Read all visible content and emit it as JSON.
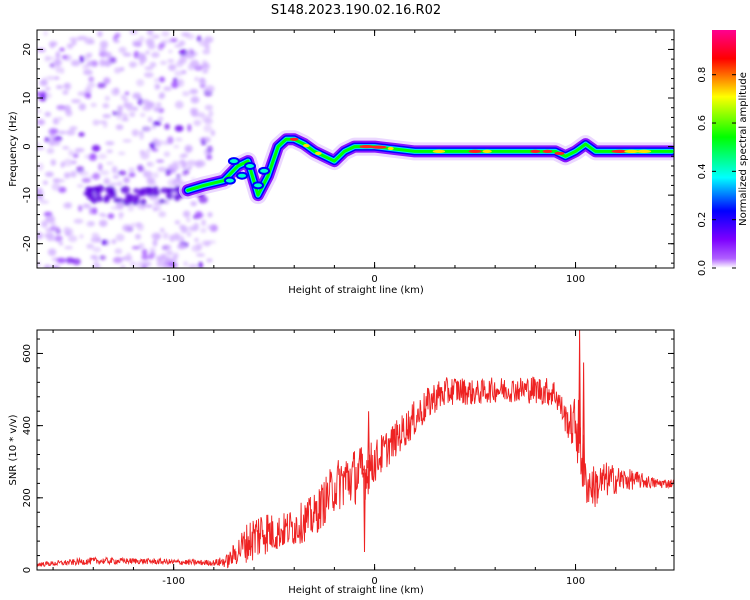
{
  "title": "S148.2023.190.02.16.R02",
  "colorbar": {
    "label": "Normalized spectral amplitude",
    "ticks": [
      0.0,
      0.2,
      0.4,
      0.6,
      0.8
    ],
    "colors": [
      "#ffffff",
      "#7d00ff",
      "#0000ff",
      "#00ffff",
      "#00ff00",
      "#ffff00",
      "#ff0000",
      "#ff0090"
    ]
  },
  "chart_data": [
    {
      "type": "heatmap",
      "xlabel": "Height of straight line (km)",
      "ylabel": "Frequency (Hz)",
      "xlim": [
        -168,
        149
      ],
      "ylim": [
        -25,
        24
      ],
      "xticks": [
        -100,
        0,
        100
      ],
      "yticks": [
        -20,
        -10,
        0,
        10,
        20
      ],
      "ridge": {
        "x": [
          -93,
          -85,
          -75,
          -68,
          -63,
          -58,
          -53,
          -48,
          -44,
          -40,
          -35,
          -30,
          -25,
          -20,
          -15,
          -10,
          0,
          10,
          20,
          40,
          60,
          80,
          90,
          95,
          100,
          105,
          110,
          120,
          130,
          140,
          148
        ],
        "freq": [
          -9,
          -8,
          -7,
          -4,
          -3,
          -10,
          -6,
          0,
          1.5,
          1.5,
          0.5,
          -1,
          -2,
          -3,
          -1,
          0,
          0,
          -0.5,
          -1,
          -1,
          -1,
          -1,
          -1,
          -2,
          -1,
          0.5,
          -1,
          -1,
          -1,
          -1,
          -1
        ]
      }
    },
    {
      "type": "line",
      "xlabel": "Height of straight line (km)",
      "ylabel": "SNR (10 * v/v)",
      "xlim": [
        -168,
        149
      ],
      "ylim": [
        0,
        665
      ],
      "xticks": [
        -100,
        0,
        100
      ],
      "yticks": [
        0,
        200,
        400,
        600
      ],
      "color": "#ee2222",
      "envelope": {
        "x": [
          -168,
          -140,
          -120,
          -100,
          -80,
          -73,
          -65,
          -60,
          -55,
          -50,
          -45,
          -40,
          -30,
          -20,
          -15,
          -10,
          -5,
          0,
          10,
          20,
          30,
          40,
          50,
          60,
          70,
          80,
          90,
          95,
          98,
          100,
          103,
          105,
          110,
          115,
          120,
          130,
          140,
          149
        ],
        "mean": [
          15,
          25,
          25,
          22,
          20,
          25,
          70,
          90,
          110,
          100,
          110,
          120,
          150,
          230,
          250,
          260,
          270,
          300,
          360,
          420,
          480,
          500,
          490,
          500,
          500,
          500,
          490,
          420,
          400,
          410,
          350,
          240,
          230,
          250,
          250,
          250,
          240,
          240
        ],
        "noise": [
          6,
          10,
          8,
          8,
          8,
          20,
          50,
          70,
          70,
          50,
          50,
          55,
          60,
          70,
          80,
          80,
          80,
          60,
          50,
          50,
          45,
          40,
          35,
          35,
          35,
          40,
          40,
          40,
          60,
          80,
          150,
          60,
          60,
          50,
          40,
          25,
          15,
          12
        ]
      },
      "peaks": [
        {
          "x": 102,
          "y": 665
        },
        {
          "x": 104,
          "y": 575
        },
        {
          "x": -3,
          "y": 440
        },
        {
          "x": -5,
          "y": 50
        }
      ]
    }
  ]
}
